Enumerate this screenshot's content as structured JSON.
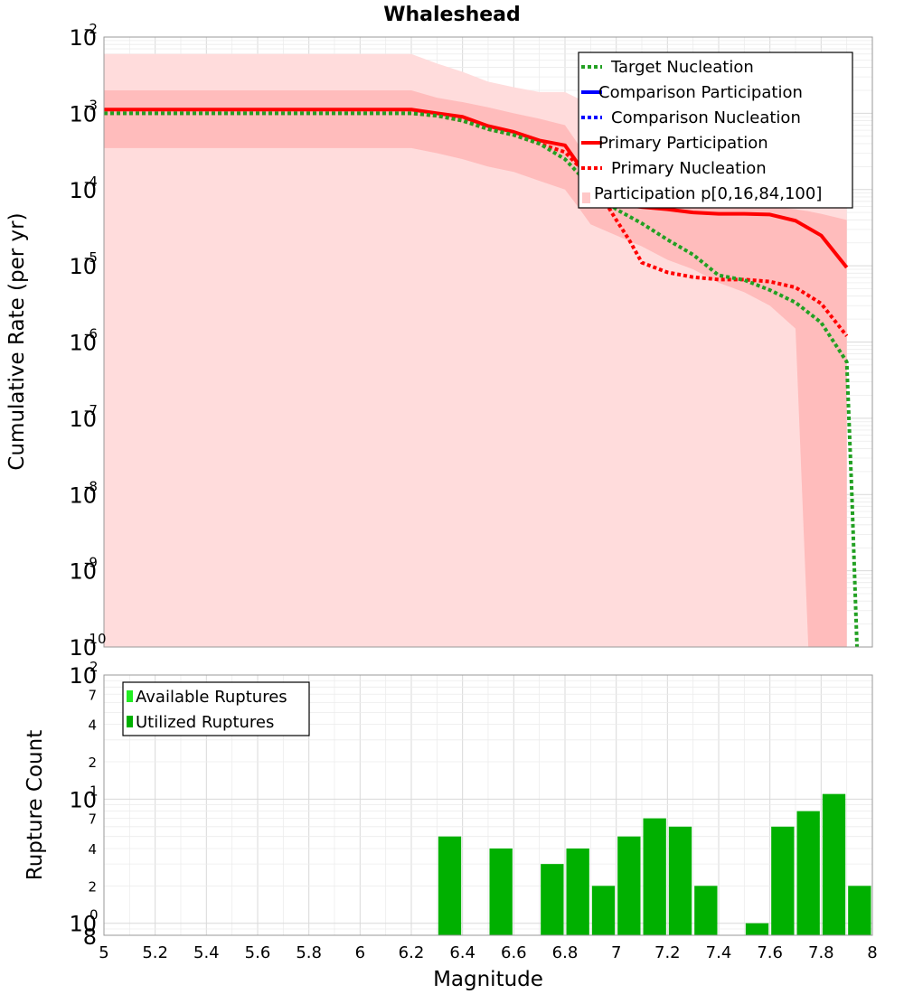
{
  "title": "Whaleshead",
  "x_axis_label": "Magnitude",
  "x_ticks": [
    "5",
    "5.2",
    "5.4",
    "5.6",
    "5.8",
    "6",
    "6.2",
    "6.4",
    "6.6",
    "6.8",
    "7",
    "7.2",
    "7.4",
    "7.6",
    "7.8",
    "8"
  ],
  "chart_data": [
    {
      "type": "line",
      "title": "Whaleshead",
      "xlabel": "Magnitude",
      "ylabel": "Cumulative Rate (per yr)",
      "xlim": [
        5,
        8
      ],
      "ylim": [
        1e-10,
        0.01
      ],
      "yscale": "log",
      "y_tick_labels": [
        {
          "base": "10",
          "exp": "-2"
        },
        {
          "base": "10",
          "exp": "-3"
        },
        {
          "base": "10",
          "exp": "-4"
        },
        {
          "base": "10",
          "exp": "-5"
        },
        {
          "base": "10",
          "exp": "-6"
        },
        {
          "base": "10",
          "exp": "-7"
        },
        {
          "base": "10",
          "exp": "-8"
        },
        {
          "base": "10",
          "exp": "-9"
        },
        {
          "base": "10",
          "exp": "-10"
        }
      ],
      "grid": true,
      "legend_position": "top-right",
      "legend": [
        {
          "label": "Target Nucleation",
          "color": "#22a022",
          "style": "dotted"
        },
        {
          "label": "Comparison Participation",
          "color": "#0000ff",
          "style": "solid"
        },
        {
          "label": "Comparison Nucleation",
          "color": "#0000ff",
          "style": "dotted"
        },
        {
          "label": "Primary Participation",
          "color": "#ff0000",
          "style": "solid"
        },
        {
          "label": "Primary Nucleation",
          "color": "#ff0000",
          "style": "dotted"
        },
        {
          "label": "Participation p[0,16,84,100]",
          "color": "#ffc8c8",
          "style": "band"
        }
      ],
      "bands": {
        "outer": {
          "color": "#ffdcdc",
          "x": [
            5.0,
            6.2,
            6.3,
            6.4,
            6.5,
            6.6,
            6.7,
            6.8,
            6.9,
            7.0,
            7.1,
            7.2,
            7.3,
            7.4,
            7.5,
            7.6,
            7.7,
            7.8,
            7.9
          ],
          "upper": [
            0.006,
            0.006,
            0.0045,
            0.0035,
            0.0026,
            0.0022,
            0.0019,
            0.0019,
            0.0013,
            0.0008,
            0.0005,
            0.00042,
            0.00035,
            0.0003,
            0.00027,
            0.00025,
            0.00024,
            0.00023,
            0.00018
          ],
          "lower": [
            1e-10,
            1e-10,
            1e-10,
            1e-10,
            1e-10,
            1e-10,
            1e-10,
            1e-10,
            1e-10,
            1e-10,
            1e-10,
            1e-10,
            1e-10,
            1e-10,
            1e-10,
            1e-10,
            1e-10,
            1e-10,
            1e-10
          ]
        },
        "inner": {
          "color": "#ffbcbc",
          "x": [
            5.0,
            6.2,
            6.3,
            6.4,
            6.5,
            6.6,
            6.7,
            6.8,
            6.85,
            6.9,
            7.0,
            7.1,
            7.2,
            7.3,
            7.4,
            7.5,
            7.6,
            7.7,
            7.75,
            7.8,
            7.9
          ],
          "upper": [
            0.002,
            0.002,
            0.0016,
            0.0014,
            0.0012,
            0.001,
            0.00085,
            0.0007,
            0.0004,
            0.00025,
            0.00011,
            8.5e-05,
            7.5e-05,
            6.8e-05,
            6.5e-05,
            6.3e-05,
            6e-05,
            5.5e-05,
            5.2e-05,
            4.8e-05,
            4e-05
          ],
          "lower": [
            0.00035,
            0.00035,
            0.0003,
            0.00025,
            0.0002,
            0.00017,
            0.00013,
            0.0001,
            6e-05,
            3.5e-05,
            2.5e-05,
            1.8e-05,
            1.2e-05,
            9e-06,
            6e-06,
            4.5e-06,
            3e-06,
            1.5e-06,
            1e-10,
            1e-10,
            1e-10
          ]
        }
      },
      "series": [
        {
          "name": "Primary Participation",
          "color": "#ff0000",
          "style": "solid",
          "x": [
            5.0,
            6.2,
            6.3,
            6.4,
            6.5,
            6.6,
            6.7,
            6.8,
            6.85,
            6.9,
            7.0,
            7.1,
            7.2,
            7.3,
            7.4,
            7.5,
            7.6,
            7.7,
            7.8,
            7.9
          ],
          "y": [
            0.00112,
            0.00112,
            0.001,
            0.0009,
            0.00068,
            0.00057,
            0.00044,
            0.00038,
            0.00022,
            0.00011,
            6.5e-05,
            5.9e-05,
            5.5e-05,
            5e-05,
            4.8e-05,
            4.8e-05,
            4.7e-05,
            3.9e-05,
            2.5e-05,
            9.5e-06
          ]
        },
        {
          "name": "Primary Nucleation",
          "color": "#ff0000",
          "style": "dotted",
          "x": [
            5.0,
            6.2,
            6.3,
            6.4,
            6.5,
            6.6,
            6.7,
            6.8,
            6.9,
            7.0,
            7.05,
            7.1,
            7.2,
            7.3,
            7.4,
            7.5,
            7.6,
            7.7,
            7.8,
            7.9
          ],
          "y": [
            0.001,
            0.001,
            0.00093,
            0.0008,
            0.00062,
            0.00052,
            0.0004,
            0.00031,
            0.00014,
            4e-05,
            2.2e-05,
            1.1e-05,
            8.2e-06,
            7.1e-06,
            6.6e-06,
            6.6e-06,
            6.2e-06,
            5.2e-06,
            3.2e-06,
            1.2e-06
          ]
        },
        {
          "name": "Target Nucleation",
          "color": "#22a022",
          "style": "dotted",
          "x": [
            5.0,
            6.2,
            6.3,
            6.4,
            6.5,
            6.6,
            6.7,
            6.8,
            6.9,
            7.0,
            7.1,
            7.2,
            7.3,
            7.4,
            7.5,
            7.6,
            7.7,
            7.8,
            7.9,
            7.92,
            7.94
          ],
          "y": [
            0.001,
            0.001,
            0.00093,
            0.0008,
            0.00062,
            0.00052,
            0.0004,
            0.00025,
            0.00011,
            5.5e-05,
            3.6e-05,
            2.2e-05,
            1.4e-05,
            7.5e-06,
            6.5e-06,
            4.8e-06,
            3.3e-06,
            1.8e-06,
            5.5e-07,
            1e-08,
            1e-10
          ]
        }
      ]
    },
    {
      "type": "bar",
      "xlabel": "Magnitude",
      "ylabel": "Rupture Count",
      "xlim": [
        5,
        8
      ],
      "ylim": [
        0.8,
        100
      ],
      "yscale": "log",
      "y_tick_labels": [
        {
          "base": "10",
          "exp": "2"
        },
        {
          "base": "7",
          "exp": ""
        },
        {
          "base": "4",
          "exp": ""
        },
        {
          "base": "2",
          "exp": ""
        },
        {
          "base": "10",
          "exp": "1"
        },
        {
          "base": "7",
          "exp": ""
        },
        {
          "base": "4",
          "exp": ""
        },
        {
          "base": "2",
          "exp": ""
        },
        {
          "base": "10",
          "exp": "0"
        },
        {
          "base": "8",
          "exp": ""
        }
      ],
      "grid": true,
      "legend_position": "top-left",
      "legend": [
        {
          "label": "Available Ruptures",
          "color": "#22ee22"
        },
        {
          "label": "Utilized Ruptures",
          "color": "#00b000"
        }
      ],
      "bar_width": 0.1,
      "series": [
        {
          "name": "Utilized Ruptures",
          "color": "#00b000",
          "x": [
            6.35,
            6.55,
            6.75,
            6.85,
            6.95,
            7.05,
            7.15,
            7.25,
            7.35,
            7.55,
            7.65,
            7.75,
            7.85,
            7.95
          ],
          "values": [
            5,
            4,
            3,
            4,
            2,
            5,
            7,
            6,
            2,
            1,
            6,
            8,
            11,
            2
          ]
        }
      ]
    }
  ]
}
